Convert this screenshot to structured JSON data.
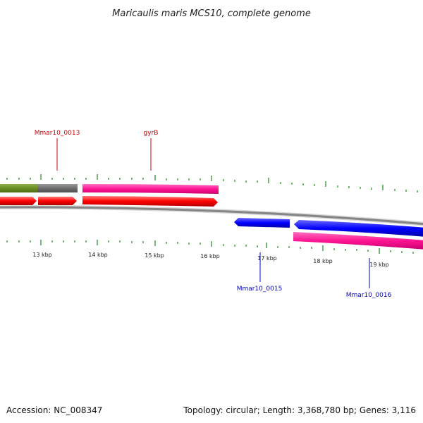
{
  "title": "Maricaulis maris MCS10, complete genome",
  "footer": {
    "accession": "Accession: NC_008347",
    "topology": "Topology: circular; Length: 3,368,780 bp; Genes: 3,116"
  },
  "axis_labels": [
    "13 kbp",
    "14 kbp",
    "15 kbp",
    "16 kbp",
    "17 kbp",
    "18 kbp",
    "19 kbp"
  ],
  "gene_labels": {
    "mmar10_0013": "Mmar10_0013",
    "gyrB": "gyrB",
    "mmar10_0015": "Mmar10_0015",
    "mmar10_0016": "Mmar10_0016"
  },
  "colors": {
    "olive": "#6b8e23",
    "gray": "#6e6e6e",
    "magenta": "#ff1493",
    "red": "#ff0000",
    "blue": "#0000ff",
    "backbone": "#888888",
    "tick": "#1a8a1a"
  }
}
